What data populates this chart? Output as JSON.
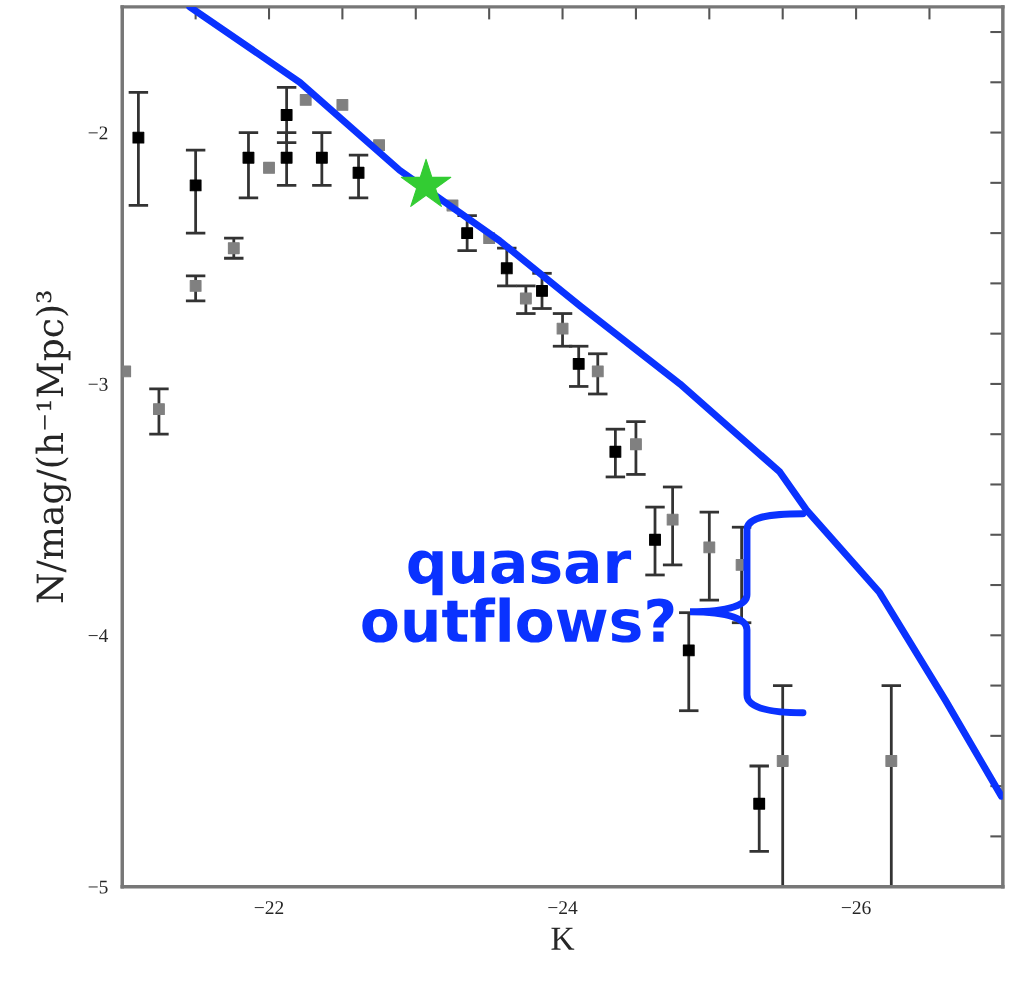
{
  "chart_data": {
    "type": "scatter",
    "xlabel": "K",
    "ylabel": "N/mag/(h⁻¹Mpc)³",
    "annotations": [
      "quasar\noutflows?"
    ],
    "xlim": [
      -21,
      -27
    ],
    "ylim": [
      -5,
      -1.5
    ],
    "xticks": [
      {
        "value": -21,
        "label": null
      },
      {
        "value": -21.5,
        "label": null
      },
      {
        "value": -22,
        "label": "−22"
      },
      {
        "value": -22.5,
        "label": null
      },
      {
        "value": -23,
        "label": null
      },
      {
        "value": -23.5,
        "label": null
      },
      {
        "value": -24,
        "label": "−24"
      },
      {
        "value": -24.5,
        "label": null
      },
      {
        "value": -25,
        "label": null
      },
      {
        "value": -25.5,
        "label": null
      },
      {
        "value": -26,
        "label": "−26"
      },
      {
        "value": -26.5,
        "label": null
      }
    ],
    "yticks": [
      {
        "value": -5,
        "label": "−5"
      },
      {
        "value": -4.8,
        "label": null
      },
      {
        "value": -4.6,
        "label": null
      },
      {
        "value": -4.4,
        "label": null
      },
      {
        "value": -4.2,
        "label": null
      },
      {
        "value": -4,
        "label": "−4"
      },
      {
        "value": -3.8,
        "label": null
      },
      {
        "value": -3.6,
        "label": null
      },
      {
        "value": -3.4,
        "label": null
      },
      {
        "value": -3.2,
        "label": null
      },
      {
        "value": -3,
        "label": "−3"
      },
      {
        "value": -2.8,
        "label": null
      },
      {
        "value": -2.6,
        "label": null
      },
      {
        "value": -2.4,
        "label": null
      },
      {
        "value": -2.2,
        "label": null
      },
      {
        "value": -2,
        "label": "−2"
      },
      {
        "value": -1.8,
        "label": null
      },
      {
        "value": -1.6,
        "label": null
      }
    ],
    "grid": false,
    "legend": false,
    "series": [
      {
        "marker": "square",
        "color": "#000000",
        "x": [
          -21.11,
          -21.5,
          -21.86,
          -22.12,
          -22.12,
          -22.36,
          -22.61,
          -23.35,
          -23.62,
          -23.86,
          -24.11,
          -24.36,
          -24.63,
          -24.86,
          -25.34
        ],
        "values": [
          -2.02,
          -2.21,
          -2.1,
          -1.93,
          -2.1,
          -2.1,
          -2.16,
          -2.4,
          -2.54,
          -2.63,
          -2.92,
          -3.27,
          -3.62,
          -4.06,
          -4.67
        ],
        "errors": [
          [
            -2.29,
            -1.84
          ],
          [
            -2.4,
            -2.07
          ],
          [
            -2.26,
            -2.0
          ],
          [
            -2.04,
            -1.82
          ],
          [
            -2.21,
            -2.0
          ],
          [
            -2.21,
            -2.0
          ],
          [
            -2.26,
            -2.09
          ],
          [
            -2.47,
            -2.33
          ],
          [
            -2.61,
            -2.46
          ],
          [
            -2.7,
            -2.56
          ],
          [
            -3.01,
            -2.85
          ],
          [
            -3.37,
            -3.18
          ],
          [
            -3.76,
            -3.49
          ],
          [
            -4.3,
            -3.91
          ],
          [
            -4.86,
            -4.52
          ]
        ]
      },
      {
        "marker": "square",
        "color": "#808080",
        "x": [
          -21.02,
          -21.25,
          -21.5,
          -21.76,
          -22.0,
          -22.25,
          -22.5,
          -22.75,
          -23.25,
          -23.5,
          -23.75,
          -24.0,
          -24.24,
          -24.5,
          -24.75,
          -25.0,
          -25.22,
          -25.5,
          -26.24
        ],
        "values": [
          -2.95,
          -3.1,
          -2.61,
          -2.46,
          -2.14,
          -1.87,
          -1.89,
          -2.05,
          -2.29,
          -2.42,
          -2.66,
          -2.78,
          -2.95,
          -3.24,
          -3.54,
          -3.65,
          -3.72,
          -4.5,
          -4.5
        ],
        "errors": [
          null,
          [
            -3.2,
            -3.02
          ],
          [
            -2.67,
            -2.57
          ],
          [
            -2.5,
            -2.42
          ],
          null,
          null,
          null,
          null,
          null,
          null,
          [
            -2.72,
            -2.61
          ],
          [
            -2.85,
            -2.72
          ],
          [
            -3.04,
            -2.88
          ],
          [
            -3.36,
            -3.15
          ],
          [
            -3.72,
            -3.41
          ],
          [
            -3.86,
            -3.51
          ],
          [
            -3.95,
            -3.57
          ],
          [
            -5.0,
            -4.2
          ],
          [
            -5.0,
            -4.2
          ]
        ]
      },
      {
        "type": "line",
        "color": "#0a32ff",
        "x": [
          -21.46,
          -22.21,
          -22.89,
          -23.57,
          -24.12,
          -24.8,
          -25.48,
          -25.66,
          -26.16,
          -26.61,
          -26.99
        ],
        "values": [
          -1.5,
          -1.8,
          -2.15,
          -2.43,
          -2.69,
          -3.0,
          -3.35,
          -3.5,
          -3.83,
          -4.26,
          -4.64
        ]
      },
      {
        "marker": "star",
        "color": "#33cc33",
        "x": [
          -23.07
        ],
        "values": [
          -2.21
        ]
      }
    ]
  }
}
